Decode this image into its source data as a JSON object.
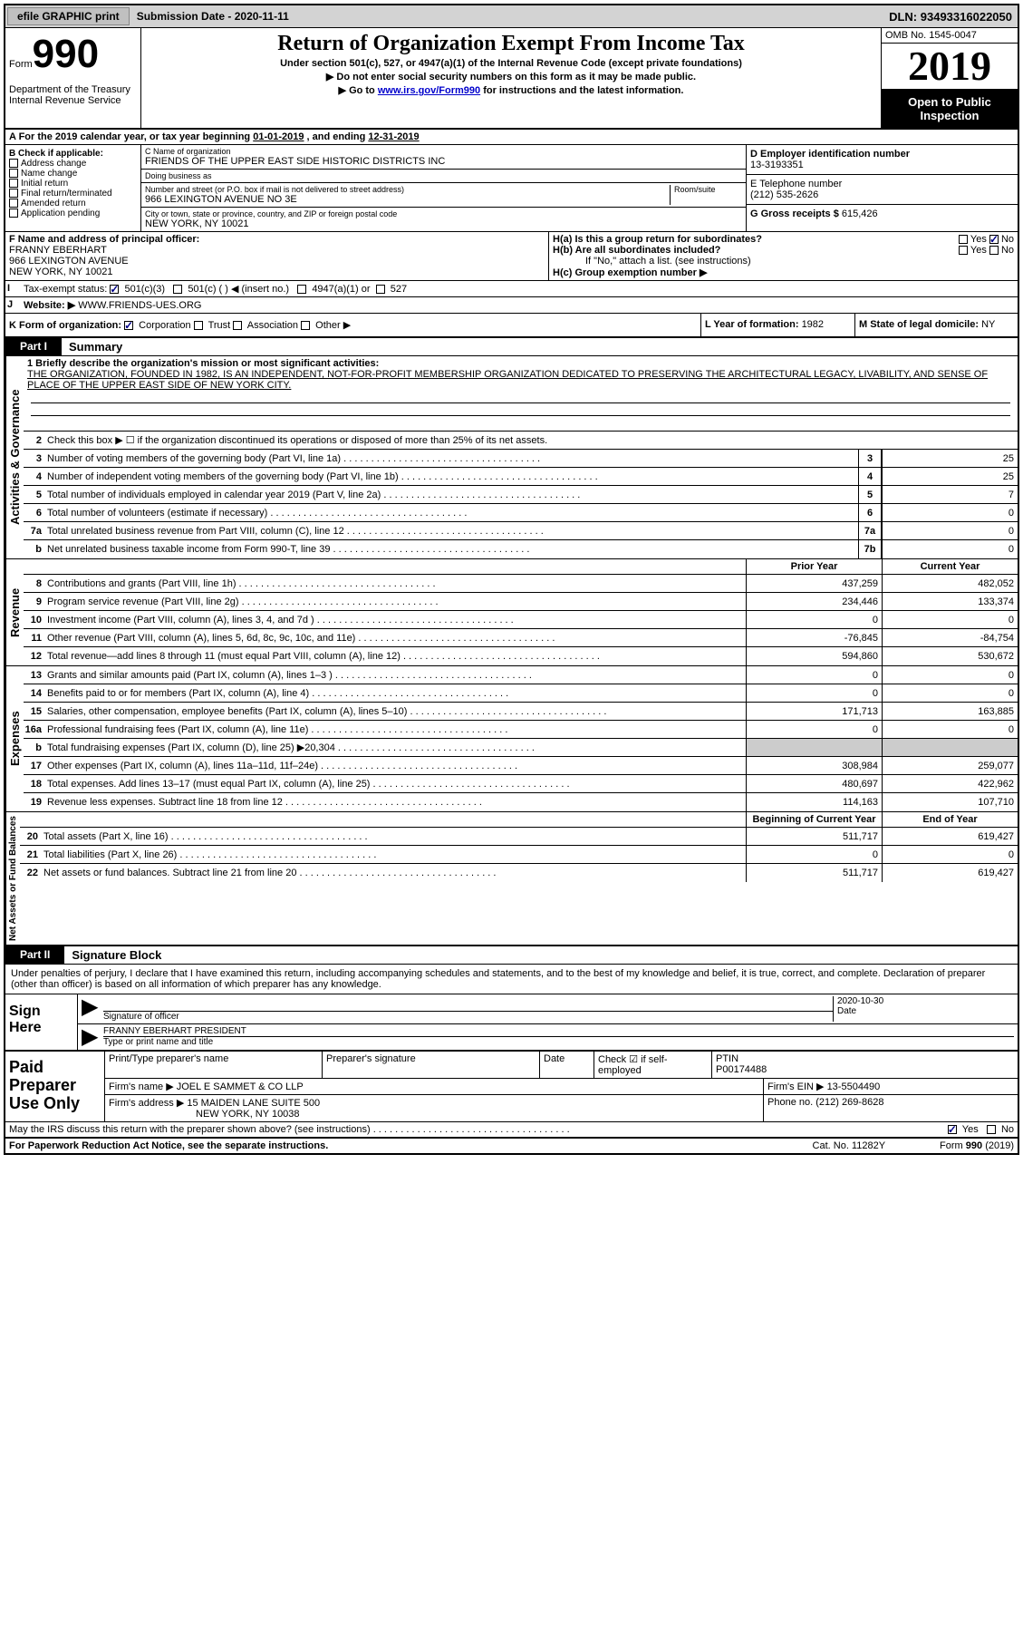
{
  "topbar": {
    "efile": "efile GRAPHIC print",
    "submission_label": "Submission Date - ",
    "submission_date": "2020-11-11",
    "dln_label": "DLN: ",
    "dln": "93493316022050"
  },
  "header": {
    "form_word": "Form",
    "form_number": "990",
    "dept1": "Department of the Treasury",
    "dept2": "Internal Revenue Service",
    "title": "Return of Organization Exempt From Income Tax",
    "sub1": "Under section 501(c), 527, or 4947(a)(1) of the Internal Revenue Code (except private foundations)",
    "sub2a": "▶ Do not enter social security numbers on this form as it may be made public.",
    "sub3a": "▶ Go to ",
    "sub3link": "www.irs.gov/Form990",
    "sub3b": " for instructions and the latest information.",
    "omb": "OMB No. 1545-0047",
    "year": "2019",
    "open": "Open to Public Inspection"
  },
  "rowA": {
    "prefix": "A For the 2019 calendar year, or tax year beginning ",
    "begin": "01-01-2019",
    "mid": "  , and ending ",
    "end": "12-31-2019"
  },
  "boxB": {
    "label": "B Check if applicable:",
    "items": [
      "Address change",
      "Name change",
      "Initial return",
      "Final return/terminated",
      "Amended return",
      "Application pending"
    ]
  },
  "boxC": {
    "name_label": "C Name of organization",
    "name": "FRIENDS OF THE UPPER EAST SIDE HISTORIC DISTRICTS INC",
    "dba_label": "Doing business as",
    "addr_label": "Number and street (or P.O. box if mail is not delivered to street address)",
    "room_label": "Room/suite",
    "addr": "966 LEXINGTON AVENUE NO 3E",
    "city_label": "City or town, state or province, country, and ZIP or foreign postal code",
    "city": "NEW YORK, NY  10021"
  },
  "boxD": {
    "label": "D Employer identification number",
    "val": "13-3193351"
  },
  "boxE": {
    "label": "E Telephone number",
    "val": "(212) 535-2626"
  },
  "boxG": {
    "label": "G Gross receipts $ ",
    "val": "615,426"
  },
  "boxF": {
    "label": "F  Name and address of principal officer:",
    "name": "FRANNY EBERHART",
    "addr1": "966 LEXINGTON AVENUE",
    "addr2": "NEW YORK, NY  10021"
  },
  "boxH": {
    "ha": "H(a)  Is this a group return for subordinates?",
    "hb": "H(b)  Are all subordinates included?",
    "hb_note": "If \"No,\" attach a list. (see instructions)",
    "hc": "H(c)  Group exemption number ▶",
    "yes": "Yes",
    "no": "No"
  },
  "rowI": {
    "label": "Tax-exempt status:",
    "o1": "501(c)(3)",
    "o2": "501(c) (  ) ◀ (insert no.)",
    "o3": "4947(a)(1) or",
    "o4": "527"
  },
  "rowJ": {
    "label": "Website: ▶",
    "val": "WWW.FRIENDS-UES.ORG"
  },
  "rowK": {
    "label": "K Form of organization:",
    "o1": "Corporation",
    "o2": "Trust",
    "o3": "Association",
    "o4": "Other ▶"
  },
  "rowL": {
    "label": "L Year of formation: ",
    "val": "1982"
  },
  "rowM": {
    "label": "M State of legal domicile: ",
    "val": "NY"
  },
  "part1": {
    "num": "Part I",
    "title": "Summary",
    "line1_label": "1  Briefly describe the organization's mission or most significant activities:",
    "mission": "THE ORGANIZATION, FOUNDED IN 1982, IS AN INDEPENDENT, NOT-FOR-PROFIT MEMBERSHIP ORGANIZATION DEDICATED TO PRESERVING THE ARCHITECTURAL LEGACY, LIVABILITY, AND SENSE OF PLACE OF THE UPPER EAST SIDE OF NEW YORK CITY.",
    "line2": "Check this box ▶ ☐  if the organization discontinued its operations or disposed of more than 25% of its net assets.",
    "sections": {
      "gov": "Activities & Governance",
      "rev": "Revenue",
      "exp": "Expenses",
      "net": "Net Assets or Fund Balances"
    },
    "rows_gov": [
      {
        "n": "3",
        "d": "Number of voting members of the governing body (Part VI, line 1a)",
        "box": "3",
        "v": "25"
      },
      {
        "n": "4",
        "d": "Number of independent voting members of the governing body (Part VI, line 1b)",
        "box": "4",
        "v": "25"
      },
      {
        "n": "5",
        "d": "Total number of individuals employed in calendar year 2019 (Part V, line 2a)",
        "box": "5",
        "v": "7"
      },
      {
        "n": "6",
        "d": "Total number of volunteers (estimate if necessary)",
        "box": "6",
        "v": "0"
      },
      {
        "n": "7a",
        "d": "Total unrelated business revenue from Part VIII, column (C), line 12",
        "box": "7a",
        "v": "0"
      },
      {
        "n": "b",
        "d": "Net unrelated business taxable income from Form 990-T, line 39",
        "box": "7b",
        "v": "0"
      }
    ],
    "col_prior": "Prior Year",
    "col_current": "Current Year",
    "rows_rev": [
      {
        "n": "8",
        "d": "Contributions and grants (Part VIII, line 1h)",
        "p": "437,259",
        "c": "482,052"
      },
      {
        "n": "9",
        "d": "Program service revenue (Part VIII, line 2g)",
        "p": "234,446",
        "c": "133,374"
      },
      {
        "n": "10",
        "d": "Investment income (Part VIII, column (A), lines 3, 4, and 7d )",
        "p": "0",
        "c": "0"
      },
      {
        "n": "11",
        "d": "Other revenue (Part VIII, column (A), lines 5, 6d, 8c, 9c, 10c, and 11e)",
        "p": "-76,845",
        "c": "-84,754"
      },
      {
        "n": "12",
        "d": "Total revenue—add lines 8 through 11 (must equal Part VIII, column (A), line 12)",
        "p": "594,860",
        "c": "530,672"
      }
    ],
    "rows_exp": [
      {
        "n": "13",
        "d": "Grants and similar amounts paid (Part IX, column (A), lines 1–3 )",
        "p": "0",
        "c": "0"
      },
      {
        "n": "14",
        "d": "Benefits paid to or for members (Part IX, column (A), line 4)",
        "p": "0",
        "c": "0"
      },
      {
        "n": "15",
        "d": "Salaries, other compensation, employee benefits (Part IX, column (A), lines 5–10)",
        "p": "171,713",
        "c": "163,885"
      },
      {
        "n": "16a",
        "d": "Professional fundraising fees (Part IX, column (A), line 11e)",
        "p": "0",
        "c": "0"
      },
      {
        "n": "b",
        "d": "Total fundraising expenses (Part IX, column (D), line 25) ▶20,304",
        "p": "",
        "c": "",
        "shaded": true
      },
      {
        "n": "17",
        "d": "Other expenses (Part IX, column (A), lines 11a–11d, 11f–24e)",
        "p": "308,984",
        "c": "259,077"
      },
      {
        "n": "18",
        "d": "Total expenses. Add lines 13–17 (must equal Part IX, column (A), line 25)",
        "p": "480,697",
        "c": "422,962"
      },
      {
        "n": "19",
        "d": "Revenue less expenses. Subtract line 18 from line 12",
        "p": "114,163",
        "c": "107,710"
      }
    ],
    "col_begin": "Beginning of Current Year",
    "col_end": "End of Year",
    "rows_net": [
      {
        "n": "20",
        "d": "Total assets (Part X, line 16)",
        "p": "511,717",
        "c": "619,427"
      },
      {
        "n": "21",
        "d": "Total liabilities (Part X, line 26)",
        "p": "0",
        "c": "0"
      },
      {
        "n": "22",
        "d": "Net assets or fund balances. Subtract line 21 from line 20",
        "p": "511,717",
        "c": "619,427"
      }
    ]
  },
  "part2": {
    "num": "Part II",
    "title": "Signature Block",
    "decl": "Under penalties of perjury, I declare that I have examined this return, including accompanying schedules and statements, and to the best of my knowledge and belief, it is true, correct, and complete. Declaration of preparer (other than officer) is based on all information of which preparer has any knowledge.",
    "sign_here": "Sign Here",
    "sig_officer": "Signature of officer",
    "sig_date_label": "Date",
    "sig_date": "2020-10-30",
    "officer_name": "FRANNY EBERHART PRESIDENT",
    "type_name": "Type or print name and title",
    "paid_label": "Paid Preparer Use Only",
    "pp_name_label": "Print/Type preparer's name",
    "pp_sig_label": "Preparer's signature",
    "pp_date_label": "Date",
    "pp_check": "Check ☑ if self-employed",
    "ptin_label": "PTIN",
    "ptin": "P00174488",
    "firm_name_label": "Firm's name    ▶ ",
    "firm_name": "JOEL E SAMMET & CO LLP",
    "firm_ein_label": "Firm's EIN ▶ ",
    "firm_ein": "13-5504490",
    "firm_addr_label": "Firm's address ▶ ",
    "firm_addr1": "15 MAIDEN LANE SUITE 500",
    "firm_addr2": "NEW YORK, NY  10038",
    "phone_label": "Phone no. ",
    "phone": "(212) 269-8628",
    "discuss": "May the IRS discuss this return with the preparer shown above? (see instructions)",
    "yes": "Yes",
    "no": "No"
  },
  "footer": {
    "left": "For Paperwork Reduction Act Notice, see the separate instructions.",
    "mid": "Cat. No. 11282Y",
    "right": "Form 990 (2019)"
  }
}
